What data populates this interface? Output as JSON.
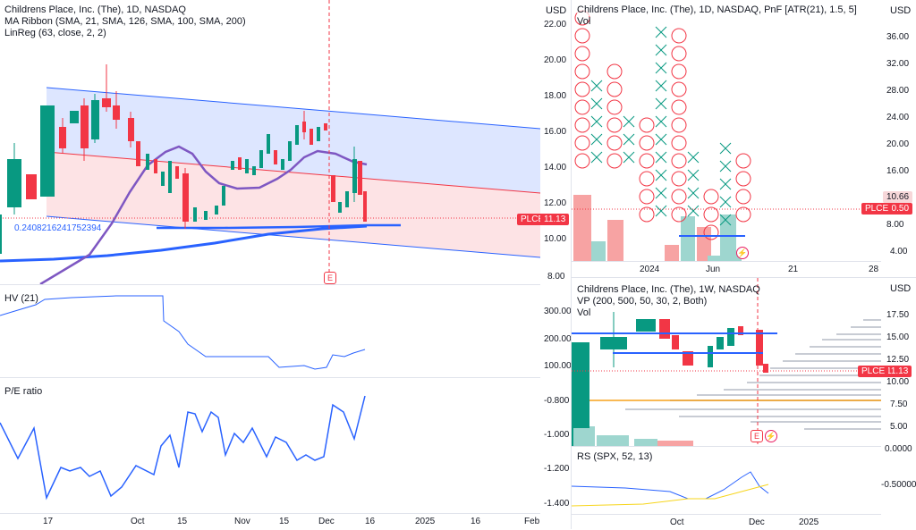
{
  "main_chart": {
    "title": "Childrens Place, Inc. (The), 1D, NASDAQ",
    "indicator_1": "MA Ribbon (SMA, 21, SMA, 126, SMA, 100, SMA, 200)",
    "indicator_2": "LinReg (63, close, 2, 2)",
    "linreg_value": "0.2408216241752394",
    "ticker": "PLCE",
    "last_price": "11.13",
    "earnings_marker": "E",
    "y_axis_unit": "USD",
    "x_ticks": [
      "17",
      "Oct",
      "15",
      "Nov",
      "15",
      "Dec",
      "16",
      "2025",
      "16",
      "Feb"
    ],
    "colors": {
      "up": "#089981",
      "down": "#f23645",
      "ma": "#2962ff",
      "ma_short": "#7e57c2"
    }
  },
  "hv_pane": {
    "label": "HV (21)",
    "y_ticks": [
      "300.00",
      "200.00",
      "100.00"
    ]
  },
  "pe_pane": {
    "label": "P/E ratio",
    "y_ticks": [
      "-0.800",
      "-1.000",
      "-1.200",
      "-1.400"
    ]
  },
  "pnf_chart": {
    "title": "Childrens Place, Inc. (The), 1D, NASDAQ, PnF [ATR(21), 1.5, 5]",
    "vol_label": "Vol",
    "left_unit": "USD",
    "right_unit": "USD",
    "left_y_ticks": [
      "22.00",
      "20.00",
      "18.00",
      "16.00",
      "14.00",
      "12.00",
      "10.00",
      "8.00"
    ],
    "right_y_ticks": [
      "36.00",
      "32.00",
      "28.00",
      "24.00",
      "20.00",
      "16.00",
      "12.00",
      "8.00",
      "4.00"
    ],
    "x_ticks": [
      "2024",
      "Jun",
      "21",
      "28"
    ],
    "price_tag_grey": "10.66",
    "ticker": "PLCE",
    "last_price": "10.50"
  },
  "weekly_chart": {
    "title": "Childrens Place, Inc. (The), 1W, NASDAQ",
    "indicator_1": "VP (200, 500, 50, 30, 2, Both)",
    "vol_label": "Vol",
    "y_unit": "USD",
    "y_ticks": [
      "17.50",
      "15.00",
      "12.50",
      "10.00",
      "7.50",
      "5.00",
      "0.0000",
      "-0.50000"
    ],
    "ticker": "PLCE",
    "last_price": "11.13",
    "x_ticks": [
      "Oct",
      "Dec",
      "2025"
    ],
    "earnings_marker": "E"
  },
  "rs_pane": {
    "label": "RS (SPX, 52, 13)"
  }
}
